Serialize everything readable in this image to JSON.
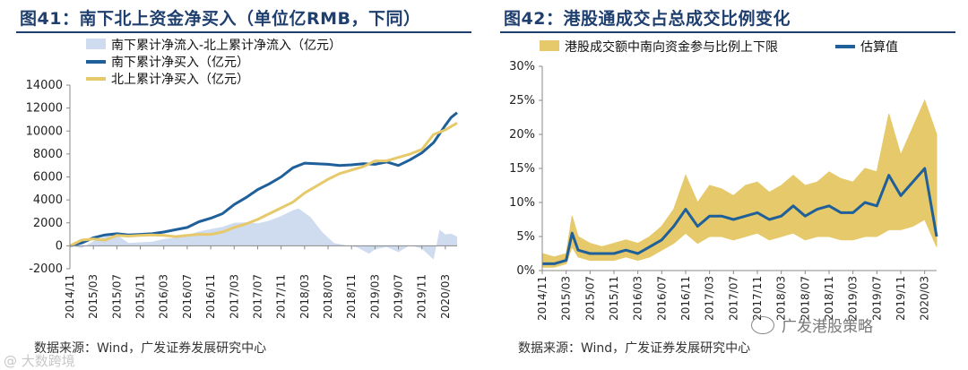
{
  "chart_data": [
    {
      "type": "area+line",
      "title": "图41：南下北上资金净买入（单位亿RMB，下同）",
      "x_ticks": [
        "2014/11",
        "2015/03",
        "2015/07",
        "2015/11",
        "2016/03",
        "2016/07",
        "2016/11",
        "2017/03",
        "2017/07",
        "2017/11",
        "2018/03",
        "2018/07",
        "2018/11",
        "2019/03",
        "2019/07",
        "2019/11",
        "2020/03"
      ],
      "x_range": [
        "2014/11",
        "2020/05"
      ],
      "ylim": [
        -2000,
        14000
      ],
      "y_ticks": [
        -2000,
        0,
        2000,
        4000,
        6000,
        8000,
        10000,
        12000,
        14000
      ],
      "grid": false,
      "legend_position": "top-left",
      "series": [
        {
          "name": "南下累计净流入-北上累计净流入（亿元）",
          "kind": "area",
          "color": "#cfdcf0",
          "points": [
            [
              "2014/11",
              0
            ],
            [
              "2015/01",
              -200
            ],
            [
              "2015/03",
              400
            ],
            [
              "2015/05",
              800
            ],
            [
              "2015/07",
              950
            ],
            [
              "2015/09",
              250
            ],
            [
              "2015/11",
              300
            ],
            [
              "2016/01",
              350
            ],
            [
              "2016/03",
              600
            ],
            [
              "2016/05",
              700
            ],
            [
              "2016/07",
              950
            ],
            [
              "2016/09",
              1250
            ],
            [
              "2016/11",
              1450
            ],
            [
              "2017/01",
              1650
            ],
            [
              "2017/03",
              2000
            ],
            [
              "2017/05",
              2050
            ],
            [
              "2017/07",
              1950
            ],
            [
              "2017/09",
              2200
            ],
            [
              "2017/11",
              2600
            ],
            [
              "2018/01",
              3100
            ],
            [
              "2018/02",
              3250
            ],
            [
              "2018/04",
              2500
            ],
            [
              "2018/06",
              1200
            ],
            [
              "2018/08",
              250
            ],
            [
              "2018/10",
              50
            ],
            [
              "2018/12",
              -150
            ],
            [
              "2019/02",
              -700
            ],
            [
              "2019/03",
              -300
            ],
            [
              "2019/05",
              -100
            ],
            [
              "2019/07",
              -550
            ],
            [
              "2019/09",
              50
            ],
            [
              "2019/11",
              -250
            ],
            [
              "2020/01",
              -1200
            ],
            [
              "2020/02",
              1400
            ],
            [
              "2020/03",
              1000
            ],
            [
              "2020/04",
              1050
            ],
            [
              "2020/05",
              800
            ]
          ]
        },
        {
          "name": "南下累计净买入（亿元）",
          "kind": "line",
          "color": "#1f5f9a",
          "points": [
            [
              "2014/11",
              0
            ],
            [
              "2015/01",
              250
            ],
            [
              "2015/03",
              700
            ],
            [
              "2015/05",
              950
            ],
            [
              "2015/07",
              1050
            ],
            [
              "2015/09",
              950
            ],
            [
              "2015/11",
              1000
            ],
            [
              "2016/01",
              1050
            ],
            [
              "2016/03",
              1200
            ],
            [
              "2016/05",
              1400
            ],
            [
              "2016/07",
              1600
            ],
            [
              "2016/09",
              2100
            ],
            [
              "2016/11",
              2400
            ],
            [
              "2017/01",
              2800
            ],
            [
              "2017/03",
              3600
            ],
            [
              "2017/05",
              4200
            ],
            [
              "2017/07",
              4900
            ],
            [
              "2017/09",
              5400
            ],
            [
              "2017/11",
              6000
            ],
            [
              "2018/01",
              6800
            ],
            [
              "2018/03",
              7200
            ],
            [
              "2018/05",
              7150
            ],
            [
              "2018/07",
              7100
            ],
            [
              "2018/09",
              7000
            ],
            [
              "2018/11",
              7050
            ],
            [
              "2019/01",
              7150
            ],
            [
              "2019/03",
              7100
            ],
            [
              "2019/05",
              7300
            ],
            [
              "2019/07",
              7000
            ],
            [
              "2019/09",
              7500
            ],
            [
              "2019/11",
              8100
            ],
            [
              "2020/01",
              9000
            ],
            [
              "2020/03",
              10500
            ],
            [
              "2020/04",
              11200
            ],
            [
              "2020/05",
              11600
            ]
          ]
        },
        {
          "name": "北上累计净买入（亿元）",
          "kind": "line",
          "color": "#e6c96a",
          "points": [
            [
              "2014/11",
              0
            ],
            [
              "2015/01",
              500
            ],
            [
              "2015/03",
              600
            ],
            [
              "2015/05",
              500
            ],
            [
              "2015/07",
              900
            ],
            [
              "2015/09",
              850
            ],
            [
              "2015/11",
              900
            ],
            [
              "2016/01",
              950
            ],
            [
              "2016/03",
              900
            ],
            [
              "2016/05",
              800
            ],
            [
              "2016/07",
              900
            ],
            [
              "2016/09",
              1000
            ],
            [
              "2016/11",
              1000
            ],
            [
              "2017/01",
              1200
            ],
            [
              "2017/03",
              1600
            ],
            [
              "2017/05",
              1900
            ],
            [
              "2017/07",
              2300
            ],
            [
              "2017/09",
              2800
            ],
            [
              "2017/11",
              3300
            ],
            [
              "2018/01",
              3800
            ],
            [
              "2018/03",
              4600
            ],
            [
              "2018/05",
              5200
            ],
            [
              "2018/07",
              5800
            ],
            [
              "2018/09",
              6300
            ],
            [
              "2018/11",
              6600
            ],
            [
              "2019/01",
              6900
            ],
            [
              "2019/03",
              7400
            ],
            [
              "2019/05",
              7400
            ],
            [
              "2019/07",
              7700
            ],
            [
              "2019/09",
              8000
            ],
            [
              "2019/11",
              8400
            ],
            [
              "2020/01",
              9700
            ],
            [
              "2020/03",
              10100
            ],
            [
              "2020/04",
              10400
            ],
            [
              "2020/05",
              10700
            ]
          ]
        }
      ]
    },
    {
      "type": "band+line",
      "title": "图42：港股通成交占总成交比例变化",
      "x_ticks": [
        "2014/11",
        "2015/03",
        "2015/07",
        "2015/11",
        "2016/03",
        "2016/07",
        "2016/11",
        "2017/03",
        "2017/07",
        "2017/11",
        "2018/03",
        "2018/07",
        "2018/11",
        "2019/03",
        "2019/07",
        "2019/11",
        "2020/03"
      ],
      "x_range": [
        "2014/11",
        "2020/05"
      ],
      "ylim": [
        0,
        30
      ],
      "y_ticks": [
        "0%",
        "5%",
        "10%",
        "15%",
        "20%",
        "25%",
        "30%"
      ],
      "grid": false,
      "legend_position": "top",
      "series": [
        {
          "name": "港股成交额中南向资金参与比例上下限",
          "kind": "band",
          "color": "#e6c96a",
          "upper": [
            [
              "2014/11",
              2.5
            ],
            [
              "2015/01",
              2.0
            ],
            [
              "2015/03",
              2.5
            ],
            [
              "2015/04",
              8.0
            ],
            [
              "2015/05",
              5.0
            ],
            [
              "2015/07",
              4.0
            ],
            [
              "2015/09",
              3.5
            ],
            [
              "2015/11",
              4.0
            ],
            [
              "2016/01",
              4.5
            ],
            [
              "2016/03",
              4.0
            ],
            [
              "2016/05",
              5.0
            ],
            [
              "2016/07",
              6.5
            ],
            [
              "2016/09",
              9.0
            ],
            [
              "2016/11",
              14.0
            ],
            [
              "2017/01",
              10.0
            ],
            [
              "2017/03",
              12.5
            ],
            [
              "2017/05",
              12.0
            ],
            [
              "2017/07",
              11.0
            ],
            [
              "2017/09",
              12.5
            ],
            [
              "2017/11",
              13.0
            ],
            [
              "2018/01",
              11.5
            ],
            [
              "2018/03",
              12.5
            ],
            [
              "2018/05",
              14.0
            ],
            [
              "2018/07",
              12.5
            ],
            [
              "2018/09",
              13.0
            ],
            [
              "2018/11",
              14.5
            ],
            [
              "2019/01",
              13.5
            ],
            [
              "2019/03",
              13.0
            ],
            [
              "2019/05",
              15.0
            ],
            [
              "2019/07",
              14.5
            ],
            [
              "2019/09",
              23.0
            ],
            [
              "2019/11",
              17.0
            ],
            [
              "2020/01",
              21.0
            ],
            [
              "2020/03",
              25.0
            ],
            [
              "2020/05",
              20.0
            ]
          ],
          "lower": [
            [
              "2014/11",
              0.5
            ],
            [
              "2015/01",
              0.5
            ],
            [
              "2015/03",
              1.0
            ],
            [
              "2015/04",
              3.5
            ],
            [
              "2015/05",
              2.0
            ],
            [
              "2015/07",
              1.5
            ],
            [
              "2015/09",
              1.5
            ],
            [
              "2015/11",
              1.5
            ],
            [
              "2016/01",
              2.0
            ],
            [
              "2016/03",
              1.5
            ],
            [
              "2016/05",
              2.0
            ],
            [
              "2016/07",
              3.0
            ],
            [
              "2016/09",
              4.0
            ],
            [
              "2016/11",
              5.5
            ],
            [
              "2017/01",
              4.0
            ],
            [
              "2017/03",
              5.0
            ],
            [
              "2017/05",
              5.0
            ],
            [
              "2017/07",
              4.5
            ],
            [
              "2017/09",
              5.0
            ],
            [
              "2017/11",
              5.5
            ],
            [
              "2018/01",
              4.5
            ],
            [
              "2018/03",
              5.0
            ],
            [
              "2018/05",
              5.5
            ],
            [
              "2018/07",
              4.5
            ],
            [
              "2018/09",
              5.0
            ],
            [
              "2018/11",
              5.0
            ],
            [
              "2019/01",
              4.5
            ],
            [
              "2019/03",
              4.5
            ],
            [
              "2019/05",
              5.0
            ],
            [
              "2019/07",
              5.0
            ],
            [
              "2019/09",
              6.0
            ],
            [
              "2019/11",
              6.0
            ],
            [
              "2020/01",
              6.5
            ],
            [
              "2020/03",
              7.5
            ],
            [
              "2020/05",
              3.5
            ]
          ]
        },
        {
          "name": "估算值",
          "kind": "line",
          "color": "#1f5f9a",
          "points": [
            [
              "2014/11",
              1.0
            ],
            [
              "2015/01",
              1.0
            ],
            [
              "2015/03",
              1.5
            ],
            [
              "2015/04",
              5.5
            ],
            [
              "2015/05",
              3.0
            ],
            [
              "2015/07",
              2.5
            ],
            [
              "2015/09",
              2.5
            ],
            [
              "2015/11",
              2.5
            ],
            [
              "2016/01",
              3.0
            ],
            [
              "2016/03",
              2.5
            ],
            [
              "2016/05",
              3.5
            ],
            [
              "2016/07",
              4.5
            ],
            [
              "2016/09",
              6.5
            ],
            [
              "2016/11",
              9.0
            ],
            [
              "2017/01",
              6.5
            ],
            [
              "2017/03",
              8.0
            ],
            [
              "2017/05",
              8.0
            ],
            [
              "2017/07",
              7.5
            ],
            [
              "2017/09",
              8.0
            ],
            [
              "2017/11",
              8.5
            ],
            [
              "2018/01",
              7.5
            ],
            [
              "2018/03",
              8.0
            ],
            [
              "2018/05",
              9.5
            ],
            [
              "2018/07",
              8.0
            ],
            [
              "2018/09",
              9.0
            ],
            [
              "2018/11",
              9.5
            ],
            [
              "2019/01",
              8.5
            ],
            [
              "2019/03",
              8.5
            ],
            [
              "2019/05",
              10.0
            ],
            [
              "2019/07",
              9.5
            ],
            [
              "2019/09",
              14.0
            ],
            [
              "2019/11",
              11.0
            ],
            [
              "2020/01",
              13.0
            ],
            [
              "2020/03",
              15.0
            ],
            [
              "2020/05",
              5.0
            ]
          ]
        }
      ]
    }
  ],
  "source_left": "数据来源：Wind，广发证券发展研究中心",
  "source_right": "数据来源：Wind，广发证券发展研究中心",
  "watermark_left": "@ 大数跨境",
  "watermark_right": "广发港股策略"
}
